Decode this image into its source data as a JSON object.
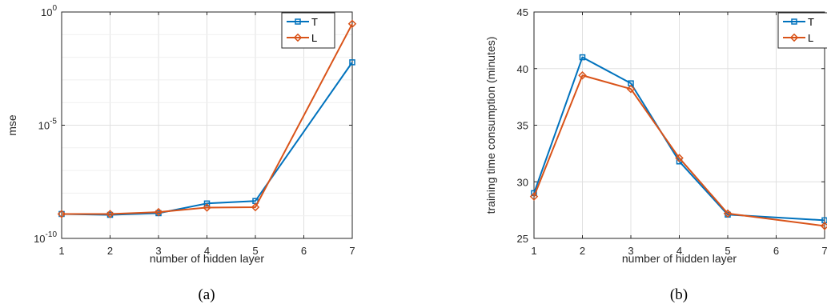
{
  "colors": {
    "T": "#0072BD",
    "L": "#D95319",
    "grid": "#e0e0e0",
    "axis": "#262626"
  },
  "chart_data": [
    {
      "id": "a",
      "type": "line",
      "caption": "(a)",
      "xlabel": "number of hidden layer",
      "ylabel": "mse",
      "yscale": "log",
      "xlim": [
        1,
        7
      ],
      "ylim_exp": [
        -10,
        0
      ],
      "xticks": [
        1,
        2,
        3,
        4,
        5,
        6,
        7
      ],
      "yticks": [
        {
          "exp": -10,
          "label": "10",
          "sup": "-10"
        },
        {
          "exp": -5,
          "label": "10",
          "sup": "-5"
        },
        {
          "exp": 0,
          "label": "10",
          "sup": "0"
        }
      ],
      "grid": true,
      "legend": "top-right",
      "series": [
        {
          "name": "T",
          "marker": "square",
          "x": [
            1,
            2,
            3,
            4,
            5,
            7
          ],
          "y": [
            1.2e-09,
            1.1e-09,
            1.3e-09,
            3.5e-09,
            4.5e-09,
            0.006
          ]
        },
        {
          "name": "L",
          "marker": "diamond",
          "x": [
            1,
            2,
            3,
            4,
            5,
            7
          ],
          "y": [
            1.2e-09,
            1.2e-09,
            1.45e-09,
            2.3e-09,
            2.4e-09,
            0.3
          ]
        }
      ]
    },
    {
      "id": "b",
      "type": "line",
      "caption": "(b)",
      "xlabel": "number of hidden layer",
      "ylabel": "training time consumption (minutes)",
      "yscale": "linear",
      "xlim": [
        1,
        7
      ],
      "ylim": [
        25,
        45
      ],
      "xticks": [
        1,
        2,
        3,
        4,
        5,
        6,
        7
      ],
      "yticks": [
        25,
        30,
        35,
        40,
        45
      ],
      "grid": true,
      "legend": "top-right",
      "series": [
        {
          "name": "T",
          "marker": "square",
          "x": [
            1,
            2,
            3,
            4,
            5,
            7
          ],
          "y": [
            29.0,
            41.0,
            38.7,
            31.8,
            27.1,
            26.6
          ]
        },
        {
          "name": "L",
          "marker": "diamond",
          "x": [
            1,
            2,
            3,
            4,
            5,
            7
          ],
          "y": [
            28.7,
            39.4,
            38.2,
            32.1,
            27.2,
            26.1
          ]
        }
      ]
    }
  ]
}
